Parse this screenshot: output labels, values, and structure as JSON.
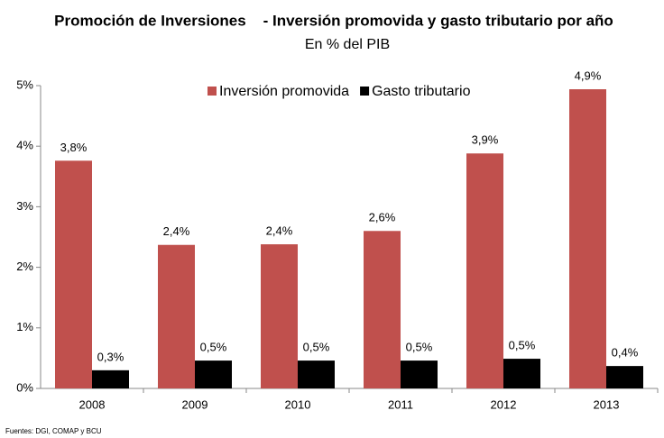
{
  "chart_data": {
    "type": "bar",
    "title": "Promoción de Inversiones    - Inversión promovida y gasto tributario por año",
    "subtitle": "En % del PIB",
    "source": "Fuentes: DGI, COMAP y BCU",
    "categories": [
      "2008",
      "2009",
      "2010",
      "2011",
      "2012",
      "2013"
    ],
    "series": [
      {
        "name": "Inversión promovida",
        "color": "#c0504d",
        "values": [
          3.76,
          2.37,
          2.38,
          2.6,
          3.88,
          4.94
        ],
        "value_labels": [
          "3,8%",
          "2,4%",
          "2,4%",
          "2,6%",
          "3,9%",
          "4,9%"
        ]
      },
      {
        "name": "Gasto tributario",
        "color": "#000000",
        "values": [
          0.3,
          0.46,
          0.46,
          0.46,
          0.49,
          0.37
        ],
        "value_labels": [
          "0,3%",
          "0,5%",
          "0,5%",
          "0,5%",
          "0,5%",
          "0,4%"
        ]
      }
    ],
    "ylim": [
      0,
      5
    ],
    "yticks": [
      {
        "value": 0,
        "label": "0%"
      },
      {
        "value": 1,
        "label": "1%"
      },
      {
        "value": 2,
        "label": "2%"
      },
      {
        "value": 3,
        "label": "3%"
      },
      {
        "value": 4,
        "label": "4%"
      },
      {
        "value": 5,
        "label": "5%"
      }
    ]
  }
}
